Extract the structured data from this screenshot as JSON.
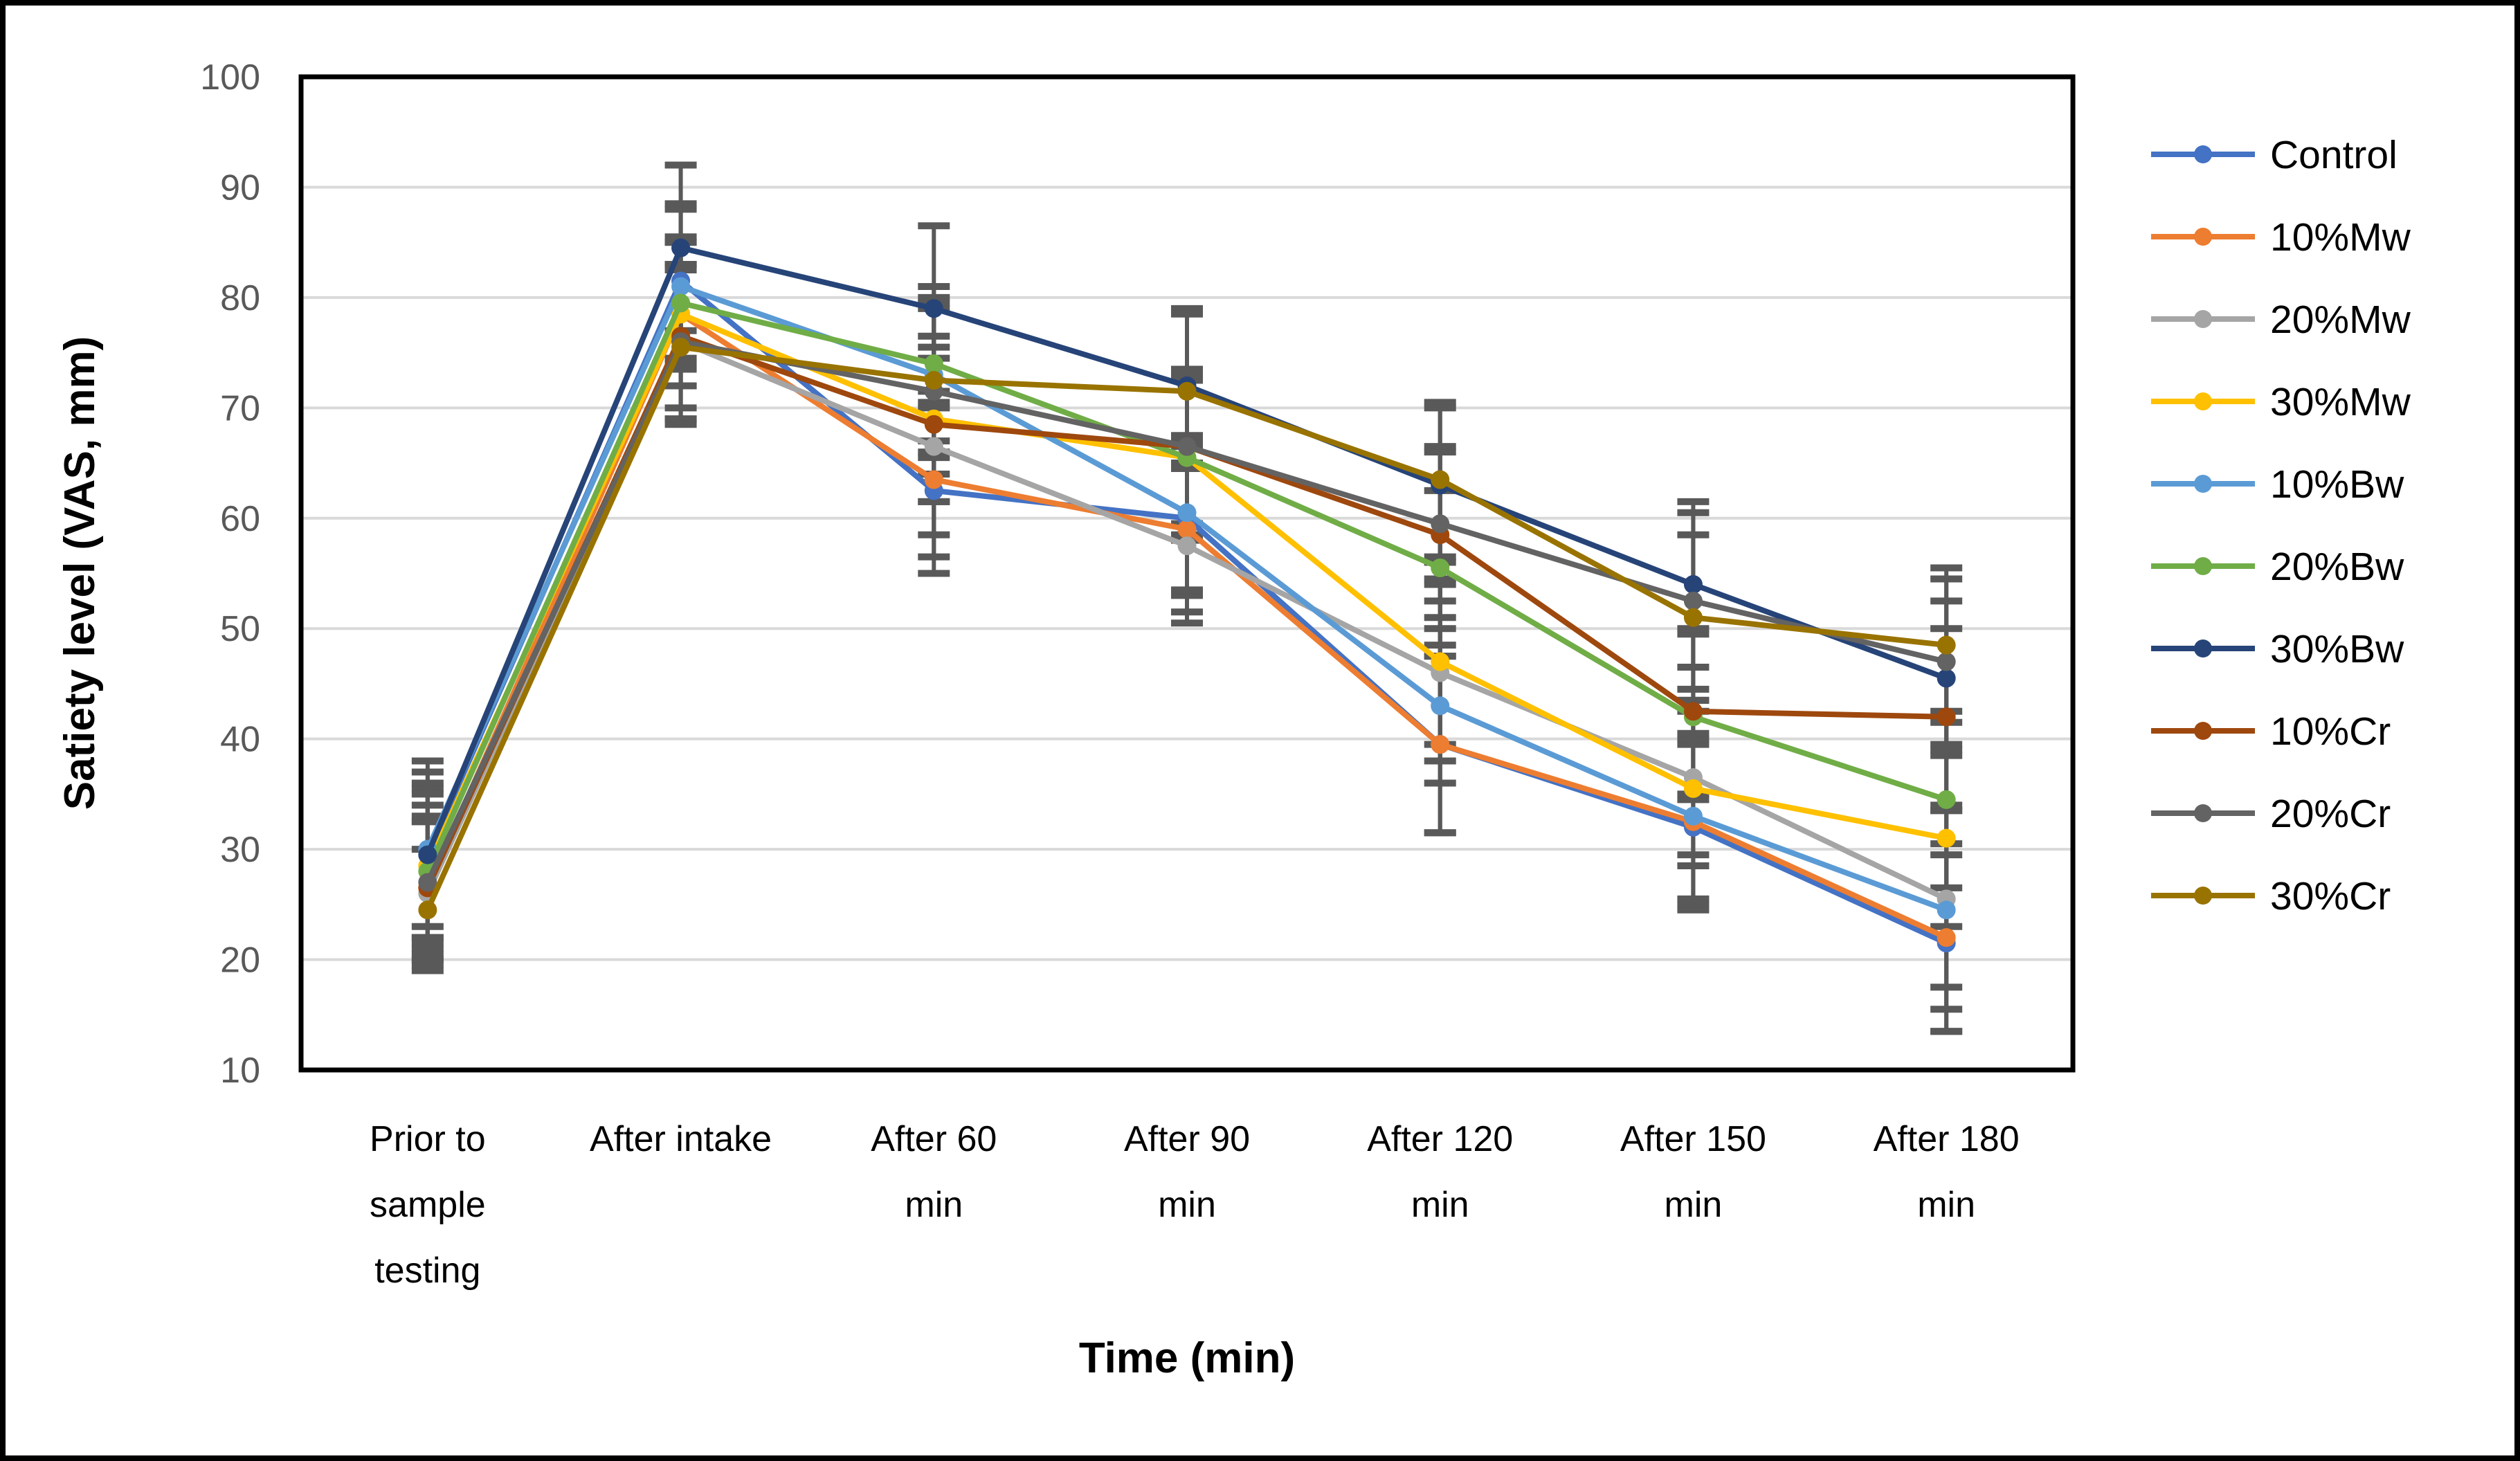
{
  "chart_data": {
    "type": "line",
    "title": "",
    "xlabel": "Time (min)",
    "ylabel": "Satiety level (VAS, mm)",
    "categories": [
      "Prior to sample testing",
      "After intake",
      "After 60 min",
      "After 90 min",
      "After 120 min",
      "After 150 min",
      "After 180 min"
    ],
    "category_lines": [
      [
        "Prior to",
        "sample",
        "testing"
      ],
      [
        "After intake"
      ],
      [
        "After 60",
        "min"
      ],
      [
        "After 90",
        "min"
      ],
      [
        "After 120",
        "min"
      ],
      [
        "After 150",
        "min"
      ],
      [
        "After 180",
        "min"
      ]
    ],
    "ylim": [
      10,
      100
    ],
    "yticks": [
      10,
      20,
      30,
      40,
      50,
      60,
      70,
      80,
      90,
      100
    ],
    "grid": true,
    "legend_position": "right",
    "colors": {
      "gridline": "#D9D9D9",
      "plot_border": "#000000",
      "error_bar": "#595959",
      "y_tick_label": "#595959",
      "category_label": "#000000",
      "axis_title": "#000000",
      "legend_text": "#000000"
    },
    "series": [
      {
        "name": "Control",
        "color": "#4472C4",
        "values": [
          29.5,
          81.5,
          62.5,
          60.0,
          39.5,
          32.0,
          21.5
        ],
        "errors": [
          6.5,
          7.0,
          7.5,
          7.0,
          8.0,
          7.5,
          8.0
        ]
      },
      {
        "name": "10%Mw",
        "color": "#ED7D31",
        "values": [
          26.5,
          78.5,
          63.5,
          59.0,
          39.5,
          32.5,
          22.0
        ],
        "errors": [
          6.0,
          6.5,
          7.0,
          7.5,
          8.0,
          7.5,
          8.5
        ]
      },
      {
        "name": "20%Mw",
        "color": "#A5A5A5",
        "values": [
          26.0,
          76.0,
          66.5,
          57.5,
          46.0,
          36.5,
          25.5
        ],
        "errors": [
          6.5,
          7.0,
          8.0,
          7.0,
          8.0,
          7.0,
          8.0
        ]
      },
      {
        "name": "30%Mw",
        "color": "#FFC000",
        "values": [
          28.5,
          78.5,
          69.0,
          65.5,
          47.0,
          35.5,
          31.0
        ],
        "errors": [
          7.0,
          6.5,
          7.5,
          7.5,
          7.5,
          7.0,
          8.0
        ]
      },
      {
        "name": "10%Bw",
        "color": "#5B9BD5",
        "values": [
          30.0,
          81.0,
          73.0,
          60.5,
          43.0,
          33.0,
          24.5
        ],
        "errors": [
          8.0,
          7.0,
          7.0,
          7.0,
          7.0,
          7.5,
          9.0
        ]
      },
      {
        "name": "20%Bw",
        "color": "#70AD47",
        "values": [
          28.0,
          79.5,
          74.0,
          65.5,
          55.5,
          42.0,
          34.5
        ],
        "errors": [
          7.0,
          6.0,
          7.0,
          7.0,
          7.0,
          7.5,
          8.0
        ]
      },
      {
        "name": "30%Bw",
        "color": "#264478",
        "values": [
          29.5,
          84.5,
          79.0,
          72.0,
          63.0,
          54.0,
          45.5
        ],
        "errors": [
          7.5,
          7.5,
          7.5,
          7.0,
          7.0,
          7.5,
          7.0
        ]
      },
      {
        "name": "10%Cr",
        "color": "#9E480E",
        "values": [
          26.5,
          76.5,
          68.5,
          66.5,
          58.5,
          42.5,
          42.0
        ],
        "errors": [
          6.5,
          6.5,
          7.0,
          7.0,
          7.5,
          7.5,
          8.0
        ]
      },
      {
        "name": "20%Cr",
        "color": "#636363",
        "values": [
          27.0,
          76.0,
          71.5,
          66.5,
          59.5,
          52.5,
          47.0
        ],
        "errors": [
          7.0,
          7.0,
          7.5,
          7.0,
          7.0,
          8.0,
          7.5
        ]
      },
      {
        "name": "30%Cr",
        "color": "#997300",
        "values": [
          24.5,
          75.5,
          72.5,
          71.5,
          63.5,
          51.0,
          48.5
        ],
        "errors": [
          5.5,
          7.0,
          7.0,
          7.0,
          7.0,
          7.5,
          7.0
        ]
      }
    ]
  }
}
